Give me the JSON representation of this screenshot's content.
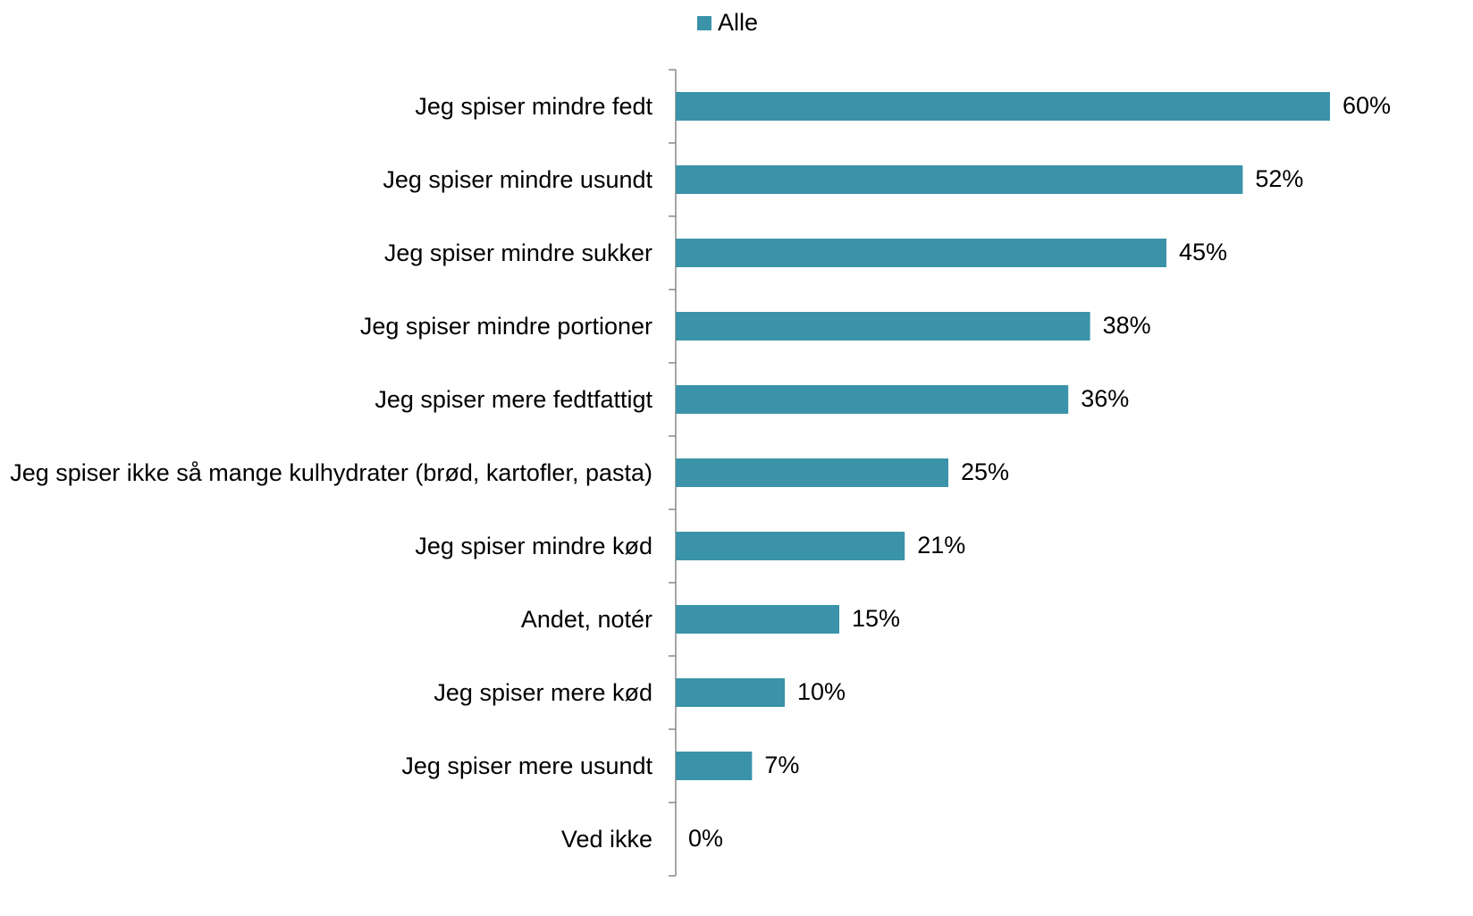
{
  "chart_data": {
    "type": "bar",
    "orientation": "horizontal",
    "categories": [
      "Jeg spiser mindre fedt",
      "Jeg spiser mindre usundt",
      "Jeg spiser mindre sukker",
      "Jeg spiser mindre portioner",
      "Jeg spiser mere fedtfattigt",
      "Jeg spiser ikke så mange kulhydrater (brød, kartofler, pasta)",
      "Jeg spiser mindre kød",
      "Andet, notér",
      "Jeg spiser mere kød",
      "Jeg spiser mere usundt",
      "Ved ikke"
    ],
    "series": [
      {
        "name": "Alle",
        "color": "#3a93a8",
        "values": [
          60,
          52,
          45,
          38,
          36,
          25,
          21,
          15,
          10,
          7,
          0
        ],
        "value_labels": [
          "60%",
          "52%",
          "45%",
          "38%",
          "36%",
          "25%",
          "21%",
          "15%",
          "10%",
          "7%",
          "0%"
        ]
      }
    ],
    "legend": "top"
  }
}
